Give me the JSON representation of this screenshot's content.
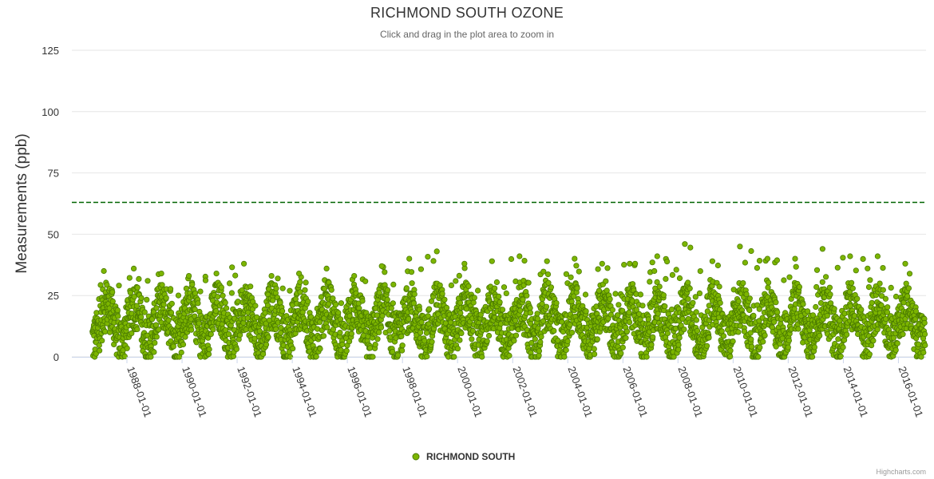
{
  "chart_data": {
    "type": "scatter",
    "title": "RICHMOND SOUTH OZONE",
    "subtitle": "Click and drag in the plot area to zoom in",
    "ylabel": "Measurements (ppb)",
    "xlabel": "",
    "ylim": [
      0,
      125
    ],
    "xlim": [
      "1986-01-01",
      "2017-01-01"
    ],
    "y_ticks": [
      "0",
      "25",
      "50",
      "75",
      "100",
      "125"
    ],
    "x_ticks": [
      "1988-01-01",
      "1990-01-01",
      "1992-01-01",
      "1994-01-01",
      "1996-01-01",
      "1998-01-01",
      "2000-01-01",
      "2002-01-01",
      "2004-01-01",
      "2006-01-01",
      "2008-01-01",
      "2010-01-01",
      "2012-01-01",
      "2014-01-01",
      "2016-01-01"
    ],
    "threshold": {
      "value": 63,
      "color": "#006400",
      "style": "dashed"
    },
    "series": [
      {
        "name": "RICHMOND SOUTH",
        "color": "#7cb500",
        "border_color": "#4a7a00",
        "seasonal_pattern": "daily values oscillating seasonally between about 0 and 30 ppb",
        "peaks": [
          {
            "x": "1987-03-01",
            "y": 35
          },
          {
            "x": "1988-04-01",
            "y": 36
          },
          {
            "x": "1989-04-01",
            "y": 34
          },
          {
            "x": "1990-04-01",
            "y": 33
          },
          {
            "x": "1991-04-01",
            "y": 34
          },
          {
            "x": "1992-04-01",
            "y": 38
          },
          {
            "x": "1993-04-01",
            "y": 33
          },
          {
            "x": "1994-04-01",
            "y": 34
          },
          {
            "x": "1995-04-01",
            "y": 36
          },
          {
            "x": "1996-04-01",
            "y": 33
          },
          {
            "x": "1997-04-01",
            "y": 37
          },
          {
            "x": "1998-04-01",
            "y": 40
          },
          {
            "x": "1999-04-01",
            "y": 43
          },
          {
            "x": "2000-04-01",
            "y": 38
          },
          {
            "x": "2001-04-01",
            "y": 39
          },
          {
            "x": "2002-04-01",
            "y": 41
          },
          {
            "x": "2003-04-01",
            "y": 39
          },
          {
            "x": "2004-04-01",
            "y": 40
          },
          {
            "x": "2005-04-01",
            "y": 38
          },
          {
            "x": "2006-04-01",
            "y": 38
          },
          {
            "x": "2007-04-01",
            "y": 41
          },
          {
            "x": "2008-04-01",
            "y": 46
          },
          {
            "x": "2009-04-01",
            "y": 39
          },
          {
            "x": "2010-04-01",
            "y": 45
          },
          {
            "x": "2011-04-01",
            "y": 40
          },
          {
            "x": "2012-04-01",
            "y": 40
          },
          {
            "x": "2013-04-01",
            "y": 44
          },
          {
            "x": "2014-04-01",
            "y": 41
          },
          {
            "x": "2015-04-01",
            "y": 41
          },
          {
            "x": "2016-04-01",
            "y": 38
          }
        ]
      }
    ],
    "legend": "bottom-center",
    "credits": "Highcharts.com"
  }
}
